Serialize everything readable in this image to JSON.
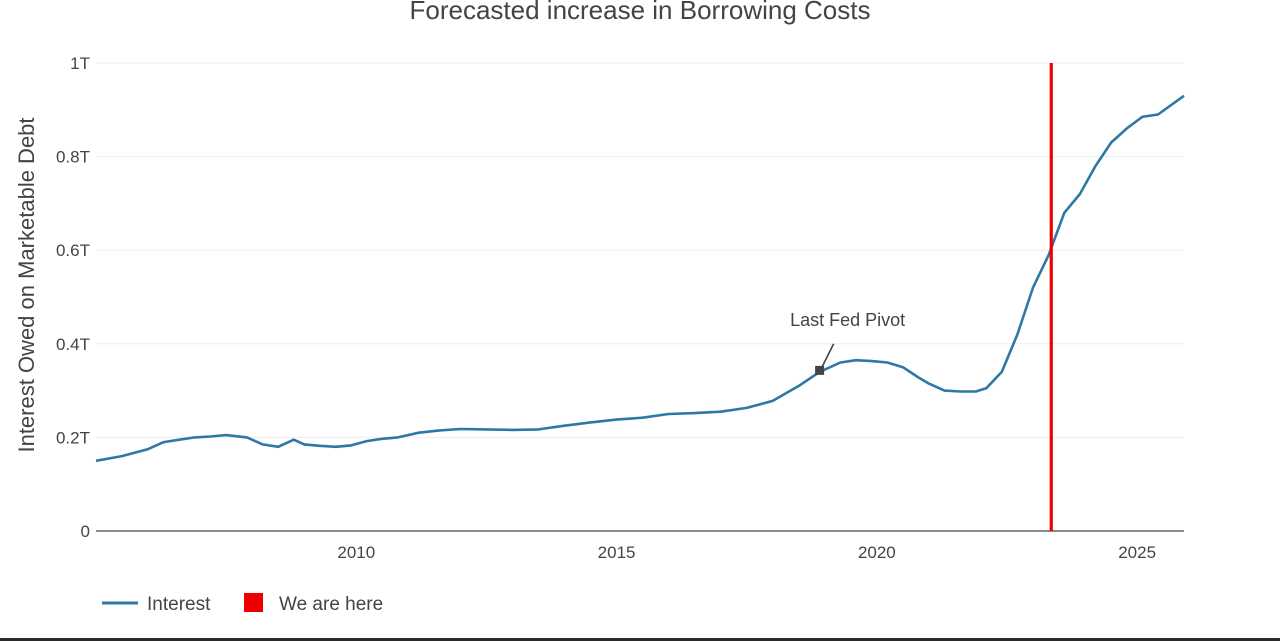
{
  "chart_data": {
    "type": "line",
    "title": "Forecasted increase in Borrowing Costs",
    "ylabel": "Interest Owed on Marketable Debt",
    "xlabel": "",
    "xlim": [
      2005.0,
      2025.9
    ],
    "ylim": [
      0,
      1000000000000
    ],
    "y_ticks": [
      {
        "value": 0,
        "label": "0"
      },
      {
        "value": 200000000000,
        "label": "0.2T"
      },
      {
        "value": 400000000000,
        "label": "0.4T"
      },
      {
        "value": 600000000000,
        "label": "0.6T"
      },
      {
        "value": 800000000000,
        "label": "0.8T"
      },
      {
        "value": 1000000000000,
        "label": "1T"
      }
    ],
    "x_ticks": [
      {
        "value": 2010,
        "label": "2010"
      },
      {
        "value": 2015,
        "label": "2015"
      },
      {
        "value": 2020,
        "label": "2020"
      },
      {
        "value": 2025,
        "label": "2025"
      }
    ],
    "grid": true,
    "legend_position": "bottom-left",
    "series": [
      {
        "name": "Interest",
        "color": "#2e78a6",
        "x": [
          2005.0,
          2005.5,
          2006.0,
          2006.3,
          2006.6,
          2006.9,
          2007.2,
          2007.5,
          2007.9,
          2008.2,
          2008.5,
          2008.8,
          2009.0,
          2009.3,
          2009.6,
          2009.9,
          2010.2,
          2010.5,
          2010.8,
          2011.2,
          2011.6,
          2012.0,
          2012.5,
          2013.0,
          2013.5,
          2014.0,
          2014.5,
          2015.0,
          2015.5,
          2016.0,
          2016.5,
          2017.0,
          2017.5,
          2018.0,
          2018.5,
          2018.9,
          2019.3,
          2019.6,
          2019.9,
          2020.2,
          2020.5,
          2020.8,
          2021.0,
          2021.3,
          2021.6,
          2021.9,
          2022.1,
          2022.4,
          2022.7,
          2023.0,
          2023.3,
          2023.6,
          2023.9,
          2024.2,
          2024.5,
          2024.8,
          2025.1,
          2025.4,
          2025.9
        ],
        "values": [
          150000000000,
          160000000000,
          175000000000,
          190000000000,
          195000000000,
          200000000000,
          202000000000,
          205000000000,
          200000000000,
          185000000000,
          180000000000,
          195000000000,
          185000000000,
          182000000000,
          180000000000,
          183000000000,
          192000000000,
          197000000000,
          200000000000,
          210000000000,
          215000000000,
          218000000000,
          217000000000,
          216000000000,
          217000000000,
          225000000000,
          232000000000,
          238000000000,
          242000000000,
          250000000000,
          252000000000,
          255000000000,
          263000000000,
          278000000000,
          310000000000,
          340000000000,
          360000000000,
          365000000000,
          363000000000,
          360000000000,
          350000000000,
          328000000000,
          315000000000,
          300000000000,
          298000000000,
          298000000000,
          305000000000,
          340000000000,
          420000000000,
          520000000000,
          590000000000,
          680000000000,
          720000000000,
          780000000000,
          830000000000,
          860000000000,
          885000000000,
          890000000000,
          930000000000
        ]
      },
      {
        "name": "We are here",
        "color": "#ee0000",
        "x_value": 2023.35
      }
    ],
    "annotations": [
      {
        "text": "Last Fed Pivot",
        "x": 2018.9,
        "y": 340000000000
      }
    ]
  }
}
